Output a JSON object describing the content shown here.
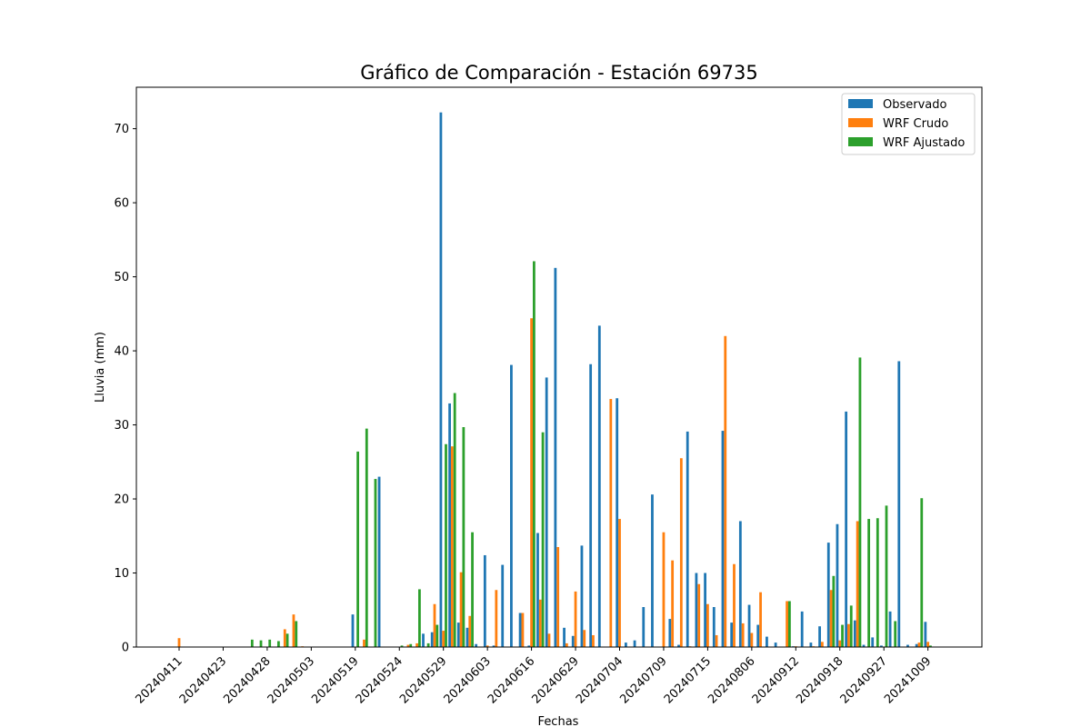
{
  "chart_data": {
    "type": "bar",
    "title": "Gráfico de Comparación - Estación 69735",
    "xlabel": "Fechas",
    "ylabel": "Lluvia (mm)",
    "ylim": [
      0,
      75.6
    ],
    "yticks": [
      0,
      10,
      20,
      30,
      40,
      50,
      60,
      70
    ],
    "xticks": [
      "20240411",
      "20240423",
      "20240428",
      "20240503",
      "20240519",
      "20240524",
      "20240529",
      "20240603",
      "20240616",
      "20240629",
      "20240704",
      "20240709",
      "20240715",
      "20240806",
      "20240912",
      "20240918",
      "20240927",
      "20241009"
    ],
    "xtick_every": 5,
    "legend_position": "top-right",
    "categories_count": 86,
    "series": [
      {
        "name": "Observado",
        "color": "#1f77b4",
        "values": [
          0,
          0,
          0,
          0,
          0,
          0,
          0,
          0,
          0,
          0,
          0,
          0,
          0,
          0,
          0,
          0,
          0,
          0,
          0,
          0,
          4.4,
          0,
          0,
          23.0,
          0,
          0,
          0,
          0,
          1.8,
          2.0,
          72.2,
          32.9,
          3.3,
          2.6,
          0.4,
          12.4,
          0.2,
          11.1,
          38.1,
          4.6,
          0.2,
          15.4,
          36.4,
          51.2,
          2.6,
          1.5,
          13.7,
          38.2,
          43.4,
          0,
          33.6,
          0.6,
          0.9,
          5.4,
          20.6,
          0,
          3.8,
          0.3,
          29.1,
          10.0,
          10.0,
          5.4,
          29.2,
          3.3,
          17.0,
          5.7,
          3.0,
          1.4,
          0.6,
          0,
          0.1,
          4.8,
          0.6,
          2.8,
          14.1,
          16.6,
          31.8,
          3.6,
          0.3,
          1.3,
          0.2,
          4.8,
          38.6,
          0.3,
          0.4,
          3.4
        ]
      },
      {
        "name": "WRF Crudo",
        "color": "#ff7f0e",
        "values": [
          1.2,
          0,
          0,
          0,
          0,
          0,
          0,
          0,
          0,
          0,
          0,
          0,
          2.4,
          4.4,
          0.1,
          0,
          0,
          0,
          0,
          0,
          0,
          1.0,
          0,
          0,
          0,
          0,
          0.3,
          0.5,
          0,
          5.8,
          2.2,
          27.1,
          10.1,
          4.2,
          0,
          0.2,
          7.7,
          0,
          0,
          4.6,
          44.4,
          6.4,
          1.8,
          13.5,
          0.5,
          7.5,
          2.3,
          1.6,
          0,
          33.5,
          17.3,
          0,
          0,
          0,
          0,
          15.5,
          11.7,
          25.5,
          0.1,
          8.5,
          5.8,
          1.6,
          42.0,
          11.2,
          3.2,
          1.9,
          7.4,
          0,
          0,
          6.2,
          0.1,
          0,
          0.1,
          0.7,
          7.7,
          0.9,
          3.1,
          17.0,
          0,
          0,
          0,
          0,
          0,
          0,
          0.6,
          0.7
        ]
      },
      {
        "name": "WRF Ajustado",
        "color": "#2ca02c",
        "values": [
          0,
          0,
          0,
          0,
          0,
          0,
          0,
          0,
          1.0,
          0.9,
          1.0,
          0.8,
          1.8,
          3.5,
          0,
          0,
          0,
          0,
          0,
          0,
          26.4,
          29.5,
          22.7,
          0,
          0,
          0.2,
          0.4,
          7.8,
          0.5,
          3.0,
          27.4,
          34.3,
          29.7,
          15.5,
          0,
          0,
          0,
          0,
          0,
          0,
          52.1,
          29.0,
          0,
          0,
          0,
          0,
          0,
          0,
          0,
          0,
          0,
          0,
          0,
          0,
          0,
          0,
          0,
          0,
          0,
          0,
          0,
          0,
          0,
          0,
          0,
          0,
          0,
          0,
          0,
          6.2,
          0,
          0,
          0,
          0,
          9.6,
          3.0,
          5.6,
          39.1,
          17.3,
          17.4,
          19.1,
          3.5,
          0,
          0,
          20.1,
          0.2
        ]
      }
    ]
  }
}
